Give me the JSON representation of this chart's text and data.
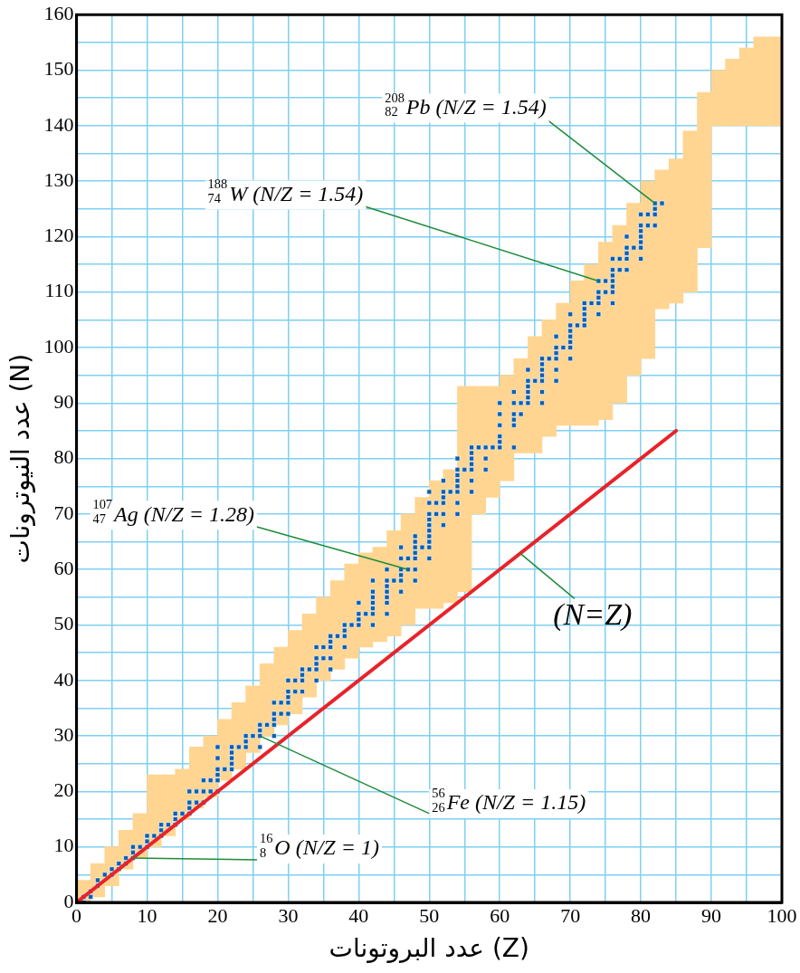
{
  "chart_data": {
    "type": "scatter",
    "xlabel": "عدد البروتونات (Z)",
    "ylabel": "عدد النيوترونات (N)",
    "xlim": [
      0,
      100
    ],
    "ylim": [
      0,
      160
    ],
    "xticks": [
      0,
      {
        "value": 5,
        "label": null
      },
      10,
      {
        "value": 15,
        "label": null
      },
      20,
      {
        "value": 25,
        "label": null
      },
      30,
      {
        "value": 35,
        "label": null
      },
      40,
      {
        "value": 45,
        "label": null
      },
      50,
      {
        "value": 55,
        "label": null
      },
      60,
      {
        "value": 65,
        "label": null
      },
      70,
      {
        "value": 75,
        "label": null
      },
      80,
      {
        "value": 85,
        "label": null
      },
      90,
      {
        "value": 95,
        "label": null
      },
      100
    ],
    "yticks": [
      0,
      {
        "value": 5,
        "label": null
      },
      10,
      {
        "value": 15,
        "label": null
      },
      20,
      {
        "value": 25,
        "label": null
      },
      30,
      {
        "value": 35,
        "label": null
      },
      40,
      {
        "value": 45,
        "label": null
      },
      50,
      {
        "value": 55,
        "label": null
      },
      60,
      {
        "value": 65,
        "label": null
      },
      70,
      {
        "value": 75,
        "label": null
      },
      80,
      {
        "value": 85,
        "label": null
      },
      90,
      {
        "value": 95,
        "label": null
      },
      100,
      {
        "value": 105,
        "label": null
      },
      110,
      {
        "value": 115,
        "label": null
      },
      120,
      {
        "value": 125,
        "label": null
      },
      130,
      {
        "value": 135,
        "label": null
      },
      140,
      {
        "value": 145,
        "label": null
      },
      150,
      {
        "value": 155,
        "label": null
      },
      160
    ],
    "grid": true,
    "legend": false,
    "series": [
      {
        "type": "bar",
        "color": "#ffd591",
        "x": [
          1,
          3,
          5,
          7,
          9,
          11,
          13,
          15,
          17,
          19,
          21,
          23,
          25,
          27,
          29,
          31,
          33,
          35,
          37,
          39,
          41,
          43,
          45,
          47,
          49,
          51,
          53,
          55,
          57,
          59,
          61,
          63,
          65,
          67,
          69,
          71,
          73,
          75,
          77,
          79,
          81,
          83,
          85,
          87,
          89,
          91,
          93,
          95,
          97,
          99
        ],
        "base": [
          0,
          1,
          3,
          6,
          8,
          10,
          12,
          15,
          17,
          19,
          22,
          24,
          27,
          30,
          32,
          34,
          37,
          40,
          42,
          44,
          46,
          47,
          48,
          50,
          53,
          53,
          54,
          56,
          70,
          73,
          76,
          81,
          81,
          84,
          86,
          86,
          86,
          87,
          90,
          95,
          98,
          107,
          108,
          110,
          118,
          140,
          140,
          140,
          140,
          140
        ],
        "values": [
          4,
          6,
          7,
          7,
          8,
          13,
          11,
          9,
          11,
          11,
          11,
          12,
          12,
          13,
          14,
          15,
          15,
          15,
          16,
          17,
          17,
          17,
          19,
          20,
          20,
          23,
          24,
          37,
          23,
          20,
          19,
          17,
          21,
          21,
          22,
          26,
          29,
          32,
          32,
          31,
          32,
          25,
          26,
          29,
          28,
          10,
          12,
          14,
          16,
          16
        ]
      },
      {
        "color": "#0a5fb4",
        "marker": "square",
        "x": [
          1,
          1,
          2,
          2,
          3,
          3,
          4,
          5,
          5,
          6,
          6,
          7,
          7,
          8,
          8,
          8,
          9,
          10,
          10,
          10,
          11,
          12,
          12,
          12,
          13,
          14,
          14,
          14,
          15,
          16,
          16,
          16,
          16,
          17,
          17,
          18,
          18,
          18,
          19,
          19,
          20,
          20,
          20,
          20,
          20,
          20,
          21,
          22,
          22,
          22,
          22,
          22,
          23,
          24,
          24,
          24,
          25,
          26,
          26,
          26,
          26,
          27,
          28,
          28,
          28,
          28,
          28,
          29,
          29,
          30,
          30,
          30,
          30,
          30,
          31,
          31,
          32,
          32,
          32,
          32,
          33,
          34,
          34,
          34,
          34,
          34,
          35,
          35,
          36,
          36,
          36,
          36,
          36,
          37,
          38,
          38,
          38,
          38,
          39,
          40,
          40,
          40,
          40,
          41,
          42,
          42,
          42,
          42,
          42,
          42,
          42,
          44,
          44,
          44,
          44,
          44,
          44,
          44,
          45,
          46,
          46,
          46,
          46,
          46,
          46,
          47,
          47,
          48,
          48,
          48,
          48,
          48,
          48,
          48,
          49,
          50,
          50,
          50,
          50,
          50,
          50,
          50,
          50,
          50,
          50,
          51,
          51,
          52,
          52,
          52,
          52,
          52,
          52,
          53,
          54,
          54,
          54,
          54,
          54,
          54,
          54,
          54,
          55,
          56,
          56,
          56,
          56,
          56,
          56,
          56,
          57,
          58,
          58,
          58,
          59,
          60,
          60,
          60,
          60,
          60,
          60,
          62,
          62,
          62,
          62,
          62,
          62,
          63,
          63,
          64,
          64,
          64,
          64,
          64,
          64,
          65,
          66,
          66,
          66,
          66,
          66,
          66,
          66,
          67,
          68,
          68,
          68,
          68,
          68,
          68,
          69,
          70,
          70,
          70,
          70,
          70,
          70,
          70,
          71,
          72,
          72,
          72,
          72,
          72,
          73,
          74,
          74,
          74,
          74,
          74,
          75,
          75,
          76,
          76,
          76,
          76,
          76,
          76,
          76,
          77,
          77,
          78,
          78,
          78,
          78,
          78,
          79,
          80,
          80,
          80,
          80,
          80,
          80,
          80,
          81,
          81,
          82,
          82,
          82,
          82,
          83
        ],
        "values": [
          0,
          1,
          1,
          2,
          3,
          4,
          5,
          5,
          6,
          6,
          7,
          7,
          8,
          8,
          9,
          10,
          10,
          10,
          11,
          12,
          12,
          12,
          13,
          14,
          14,
          14,
          15,
          16,
          16,
          16,
          17,
          18,
          20,
          18,
          20,
          18,
          20,
          22,
          20,
          22,
          20,
          22,
          23,
          24,
          26,
          28,
          24,
          24,
          25,
          26,
          27,
          28,
          28,
          28,
          29,
          30,
          30,
          28,
          30,
          31,
          32,
          32,
          30,
          32,
          33,
          34,
          36,
          34,
          36,
          34,
          36,
          37,
          38,
          40,
          38,
          40,
          38,
          40,
          41,
          42,
          42,
          40,
          42,
          43,
          44,
          46,
          44,
          46,
          42,
          44,
          46,
          47,
          48,
          48,
          46,
          48,
          49,
          50,
          50,
          50,
          51,
          52,
          54,
          52,
          50,
          52,
          53,
          54,
          55,
          56,
          58,
          52,
          54,
          55,
          56,
          57,
          58,
          60,
          58,
          56,
          58,
          59,
          60,
          62,
          64,
          60,
          62,
          58,
          60,
          62,
          63,
          64,
          65,
          66,
          64,
          62,
          64,
          65,
          66,
          67,
          68,
          69,
          70,
          72,
          74,
          70,
          72,
          68,
          70,
          72,
          73,
          74,
          76,
          74,
          70,
          72,
          74,
          75,
          76,
          77,
          78,
          80,
          78,
          74,
          76,
          78,
          79,
          80,
          81,
          82,
          82,
          78,
          80,
          82,
          82,
          82,
          83,
          84,
          86,
          88,
          90,
          82,
          86,
          87,
          88,
          90,
          92,
          88,
          90,
          90,
          91,
          92,
          93,
          94,
          96,
          94,
          90,
          92,
          94,
          95,
          96,
          97,
          98,
          98,
          94,
          96,
          98,
          99,
          100,
          102,
          100,
          98,
          100,
          101,
          102,
          103,
          104,
          106,
          104,
          104,
          105,
          106,
          107,
          108,
          108,
          106,
          108,
          109,
          110,
          112,
          110,
          112,
          108,
          110,
          111,
          112,
          113,
          114,
          116,
          114,
          116,
          114,
          116,
          117,
          118,
          120,
          118,
          116,
          118,
          119,
          120,
          121,
          122,
          124,
          122,
          124,
          122,
          124,
          125,
          126,
          126
        ]
      },
      {
        "type": "line",
        "name": "(N=Z)",
        "color": "#e8232a",
        "x": [
          0,
          85
        ],
        "values": [
          0,
          85
        ]
      }
    ],
    "annotations": [
      {
        "text": "$^{208}$$_{82}$Pb (N/Z = 1.54)",
        "x": 82,
        "y": 126
      },
      {
        "text": "$^{188}$$_{74}$W (N/Z = 1.54)",
        "x": 74,
        "y": 112
      },
      {
        "text": "$^{107}$$_{47}$Ag (N/Z = 1.28)",
        "x": 47,
        "y": 60
      },
      {
        "text": "$^{56}$$_{26}$Fe (N/Z = 1.15)",
        "x": 26,
        "y": 30
      },
      {
        "text": "$^{16}$$_{8}$O (N/Z = 1)",
        "x": 8,
        "y": 8
      }
    ]
  }
}
